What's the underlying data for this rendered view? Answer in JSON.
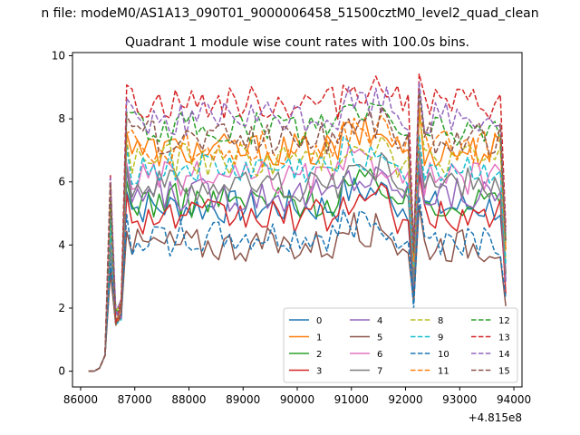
{
  "figure": {
    "suptitle": "n file: modeM0/AS1A13_090T01_9000006458_51500cztM0_level2_quad_clean",
    "offset_label": "+4.815e8"
  },
  "chart_data": {
    "type": "line",
    "title": "Quadrant 1 module wise count rates with 100.0s bins.",
    "xlabel": "",
    "ylabel": "",
    "x_offset": 481500000,
    "x_start": 86150,
    "x_step": 100,
    "xlim": [
      85850,
      94150
    ],
    "ylim": [
      -0.5,
      10.1
    ],
    "xticks": [
      86000,
      87000,
      88000,
      89000,
      90000,
      91000,
      92000,
      93000,
      94000
    ],
    "xtick_labels": [
      "86000",
      "87000",
      "88000",
      "89000",
      "90000",
      "91000",
      "92000",
      "93000",
      "94000"
    ],
    "yticks": [
      0,
      2,
      4,
      6,
      8,
      10
    ],
    "ytick_labels": [
      "0",
      "2",
      "4",
      "6",
      "8",
      "10"
    ],
    "grid": false,
    "legend": {
      "placement": "lower-right",
      "columns": 4
    },
    "series": [
      {
        "name": "0",
        "color": "#1f77b4",
        "dash": "solid",
        "base": 5.2
      },
      {
        "name": "1",
        "color": "#ff7f0e",
        "dash": "solid",
        "base": 7.0
      },
      {
        "name": "2",
        "color": "#2ca02c",
        "dash": "solid",
        "base": 5.4
      },
      {
        "name": "3",
        "color": "#d62728",
        "dash": "solid",
        "base": 4.9
      },
      {
        "name": "4",
        "color": "#9467bd",
        "dash": "solid",
        "base": 5.6
      },
      {
        "name": "5",
        "color": "#8c564b",
        "dash": "solid",
        "base": 4.0
      },
      {
        "name": "6",
        "color": "#e377c2",
        "dash": "solid",
        "base": 6.1
      },
      {
        "name": "7",
        "color": "#7f7f7f",
        "dash": "solid",
        "base": 5.9
      },
      {
        "name": "8",
        "color": "#bcbd22",
        "dash": "dashed",
        "base": 6.7
      },
      {
        "name": "9",
        "color": "#17becf",
        "dash": "dashed",
        "base": 6.4
      },
      {
        "name": "10",
        "color": "#1f77b4",
        "dash": "dashed",
        "base": 4.2
      },
      {
        "name": "11",
        "color": "#ff7f0e",
        "dash": "dashed",
        "base": 7.1
      },
      {
        "name": "12",
        "color": "#2ca02c",
        "dash": "dashed",
        "base": 7.7
      },
      {
        "name": "13",
        "color": "#d62728",
        "dash": "dashed",
        "base": 8.5
      },
      {
        "name": "14",
        "color": "#9467bd",
        "dash": "dashed",
        "base": 8.0
      },
      {
        "name": "15",
        "color": "#8c564b",
        "dash": "dashed",
        "base": 7.4
      }
    ]
  }
}
